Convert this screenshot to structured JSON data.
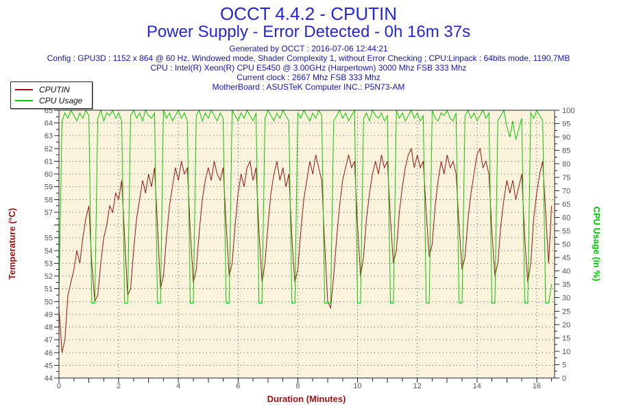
{
  "header": {
    "title_line1": "OCCT 4.4.2 - CPUTIN",
    "title_line2": "Power Supply - Error Detected - 0h 16m 37s",
    "info_lines": [
      "Generated by OCCT : 2016-07-06 12:44:21",
      "Config : GPU3D : 1152 x 864 @ 60 Hz, Windowed mode, Shader Complexity 1, without Error Checking ; CPU:Linpack : 64bits mode, 1190,7MB",
      "CPU : Intel(R) Xeon(R) CPU E5450 @ 3.00GHz (Harpertown) 3000 Mhz FSB 333 Mhz",
      "Current clock : 2667 Mhz FSB 333 Mhz",
      "MotherBoard : ASUSTeK Computer INC.: P5N73-AM"
    ]
  },
  "legend": {
    "items": [
      {
        "label": "CPUTIN",
        "color": "#9b1010"
      },
      {
        "label": "CPU Usage",
        "color": "#00cc00"
      }
    ]
  },
  "chart_data": {
    "type": "line",
    "title": "OCCT 4.4.2 - CPUTIN",
    "subtitle": "Power Supply - Error Detected - 0h 16m 37s",
    "background": "#fcf3dd",
    "grid_color": "#555555",
    "grid": {
      "h_every": 1,
      "v_every": 2,
      "style": "dotted"
    },
    "x": {
      "label": "Duration (Minutes)",
      "min": 0,
      "max": 16.6,
      "major_tick": 2,
      "minor_tick": 0.5,
      "tick_labels": [
        0,
        2,
        4,
        6,
        8,
        10,
        12,
        14,
        16
      ]
    },
    "y_left": {
      "label": "Temperature (°C)",
      "min": 44,
      "max": 65,
      "major_tick": 1,
      "minor_tick": 0.5,
      "tick_labels": [
        65,
        64,
        63,
        62,
        61,
        60,
        59,
        58,
        57,
        55,
        54,
        53,
        52,
        51,
        50,
        49,
        48,
        47,
        46,
        45,
        44
      ],
      "color": "#9b1010"
    },
    "y_right": {
      "label": "CPU Usage (in %)",
      "min": 0,
      "max": 100,
      "major_tick": 5,
      "minor_tick": 2.5,
      "tick_labels": [
        100,
        95,
        90,
        85,
        80,
        75,
        70,
        65,
        60,
        55,
        50,
        45,
        40,
        35,
        30,
        25,
        20,
        15,
        10,
        5,
        0
      ],
      "color": "#00c300"
    },
    "series": [
      {
        "name": "CPUTIN",
        "axis": "left",
        "color": "#9b1010",
        "x_start": 0,
        "x_step": 0.1,
        "values": [
          49.5,
          46,
          47,
          50.5,
          51.5,
          52.5,
          54,
          53,
          55,
          56.5,
          57.5,
          53,
          50,
          50.5,
          53,
          55,
          56,
          57.5,
          57,
          58.5,
          58,
          59.5,
          55,
          50.5,
          51,
          54,
          56.5,
          58,
          59.5,
          58.5,
          60,
          59,
          60.5,
          56,
          51,
          52,
          55,
          57.5,
          59,
          60.5,
          59.5,
          61,
          60,
          60.5,
          55.5,
          51.5,
          52.5,
          55.5,
          58,
          59.5,
          60.5,
          59.5,
          61,
          60,
          59.5,
          60.5,
          56,
          52,
          53,
          56,
          58.5,
          60,
          59,
          60.5,
          61,
          59.5,
          60.5,
          55.5,
          51.5,
          53,
          56,
          58.5,
          60,
          61,
          59.5,
          60.5,
          59,
          60,
          55,
          51.5,
          52.5,
          55.5,
          58,
          59.5,
          61,
          60,
          61.5,
          60.5,
          59.5,
          54.5,
          50,
          49.5,
          52,
          55,
          57.5,
          59.5,
          60.5,
          61.5,
          60.5,
          61,
          56,
          52,
          53.5,
          56.5,
          58.5,
          60,
          61,
          60,
          61.5,
          60.5,
          61,
          56.5,
          53,
          54,
          57,
          59,
          60.5,
          61.5,
          62,
          60.5,
          61.5,
          60.5,
          61,
          57,
          53.5,
          54.5,
          57.5,
          59.5,
          61,
          60,
          61.5,
          60.5,
          61,
          60,
          56,
          52.5,
          53.5,
          56.5,
          58.5,
          60,
          61.5,
          62,
          60.5,
          61,
          60,
          55.5,
          52,
          53,
          56,
          58,
          59.5,
          58.5,
          59.5,
          58,
          59,
          60,
          55,
          51.5,
          53,
          56.5,
          58.5,
          60,
          61,
          57,
          53,
          57.5
        ]
      },
      {
        "name": "CPU Usage",
        "axis": "right",
        "color": "#00cc00",
        "x_start": 0,
        "x_step": 0.1,
        "values": [
          30,
          96,
          99,
          97,
          100,
          98,
          96,
          99,
          97,
          100,
          98,
          28,
          28,
          97,
          100,
          96,
          99,
          98,
          100,
          97,
          99,
          96,
          28,
          28,
          98,
          100,
          97,
          99,
          96,
          100,
          98,
          97,
          99,
          28,
          28,
          100,
          97,
          99,
          96,
          98,
          100,
          97,
          99,
          96,
          28,
          28,
          98,
          100,
          96,
          99,
          97,
          100,
          98,
          96,
          99,
          97,
          28,
          28,
          100,
          98,
          96,
          99,
          97,
          100,
          98,
          96,
          99,
          28,
          28,
          97,
          100,
          98,
          96,
          99,
          97,
          100,
          98,
          96,
          28,
          28,
          99,
          97,
          100,
          98,
          96,
          99,
          97,
          100,
          98,
          28,
          28,
          28,
          96,
          98,
          100,
          97,
          99,
          96,
          98,
          100,
          28,
          28,
          97,
          99,
          96,
          100,
          98,
          97,
          99,
          96,
          98,
          28,
          28,
          100,
          97,
          99,
          96,
          98,
          100,
          97,
          99,
          96,
          98,
          28,
          28,
          100,
          97,
          96,
          99,
          98,
          100,
          97,
          96,
          99,
          28,
          28,
          98,
          100,
          97,
          99,
          96,
          98,
          100,
          97,
          99,
          28,
          28,
          96,
          98,
          100,
          94,
          90,
          96,
          89,
          93,
          97,
          28,
          28,
          99,
          97,
          100,
          98,
          96,
          28,
          28,
          35
        ]
      }
    ]
  }
}
